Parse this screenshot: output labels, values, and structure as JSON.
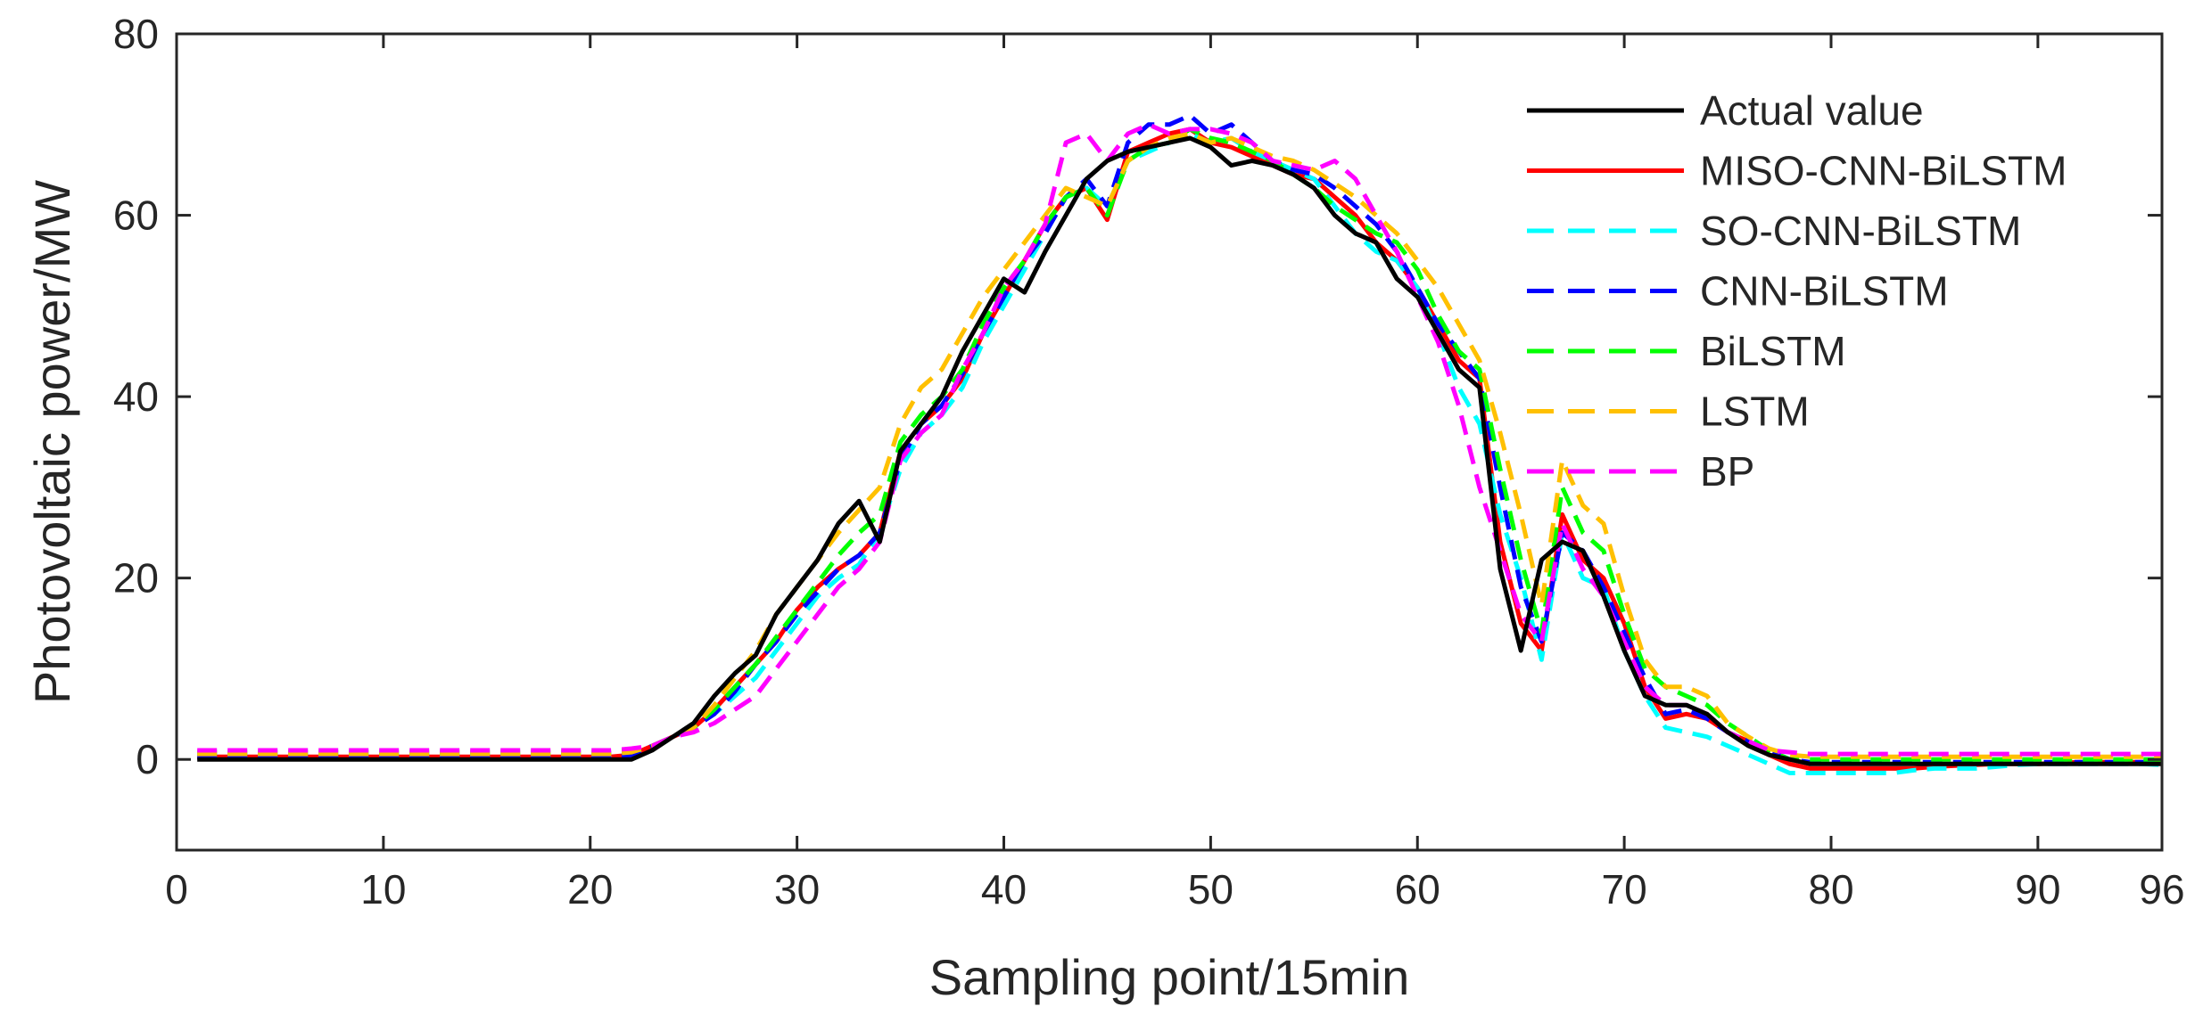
{
  "chart_data": {
    "type": "line",
    "title": "",
    "xlabel": "Sampling point/15min",
    "ylabel": "Photovoltaic power/MW",
    "xlim": [
      0,
      96
    ],
    "ylim": [
      -10,
      80
    ],
    "xticks": [
      0,
      10,
      20,
      30,
      40,
      50,
      60,
      70,
      80,
      90,
      96
    ],
    "yticks": [
      0,
      20,
      40,
      60,
      80
    ],
    "grid": false,
    "legend_position": "top-right",
    "x": [
      1,
      2,
      3,
      4,
      5,
      6,
      7,
      8,
      9,
      10,
      11,
      12,
      13,
      14,
      15,
      16,
      17,
      18,
      19,
      20,
      21,
      22,
      23,
      24,
      25,
      26,
      27,
      28,
      29,
      30,
      31,
      32,
      33,
      34,
      35,
      36,
      37,
      38,
      39,
      40,
      41,
      42,
      43,
      44,
      45,
      46,
      47,
      48,
      49,
      50,
      51,
      52,
      53,
      54,
      55,
      56,
      57,
      58,
      59,
      60,
      61,
      62,
      63,
      64,
      65,
      66,
      67,
      68,
      69,
      70,
      71,
      72,
      73,
      74,
      75,
      76,
      77,
      78,
      79,
      80,
      81,
      82,
      83,
      84,
      85,
      86,
      87,
      88,
      89,
      90,
      91,
      92,
      93,
      94,
      95,
      96
    ],
    "series": [
      {
        "name": "Actual value",
        "color": "#000000",
        "dash": "solid",
        "values": [
          0,
          0,
          0,
          0,
          0,
          0,
          0,
          0,
          0,
          0,
          0,
          0,
          0,
          0,
          0,
          0,
          0,
          0,
          0,
          0,
          0,
          0,
          1,
          2.5,
          4,
          7,
          9.5,
          11.5,
          16,
          19,
          22,
          26,
          28.5,
          24,
          34,
          37,
          40,
          45,
          49,
          53,
          51.5,
          56,
          60,
          64,
          66,
          67,
          67.5,
          68,
          68.5,
          67.5,
          65.5,
          66,
          65.5,
          64.5,
          63,
          60,
          58,
          57,
          53,
          51,
          47,
          43,
          41,
          21,
          12,
          22,
          24,
          23,
          18,
          12,
          7,
          6,
          6,
          5,
          3,
          1.5,
          0.5,
          0,
          -0.5,
          -0.5,
          -0.5,
          -0.5,
          -0.5,
          -0.5,
          -0.5,
          -0.5,
          -0.5,
          -0.5,
          -0.5,
          -0.5,
          -0.5,
          -0.5,
          -0.5,
          -0.5,
          -0.5,
          -0.5
        ]
      },
      {
        "name": "MISO-CNN-BiLSTM",
        "color": "#ff0000",
        "dash": "solid",
        "values": [
          0.3,
          0.3,
          0.3,
          0.3,
          0.3,
          0.3,
          0.3,
          0.3,
          0.3,
          0.3,
          0.3,
          0.3,
          0.3,
          0.3,
          0.3,
          0.3,
          0.3,
          0.3,
          0.3,
          0.3,
          0.3,
          0.5,
          1.5,
          2.5,
          3.5,
          5.5,
          8,
          10.5,
          13,
          16.5,
          19,
          21,
          22.5,
          25,
          34,
          37,
          39,
          42,
          47,
          51,
          55,
          59,
          62,
          63,
          59.5,
          67,
          68,
          69,
          69.5,
          68,
          67.5,
          66.5,
          65.5,
          64.5,
          64,
          62,
          60,
          57,
          55,
          52,
          48,
          44,
          42,
          24,
          15,
          12,
          27,
          22,
          20,
          15,
          8,
          4.5,
          5,
          4.5,
          3,
          2,
          0.5,
          -0.5,
          -1,
          -1,
          -1,
          -1,
          -1,
          -1,
          -0.8,
          -0.7,
          -0.6,
          -0.5,
          -0.5,
          -0.5,
          -0.4,
          -0.3,
          -0.3,
          -0.3,
          -0.3,
          -0.3
        ]
      },
      {
        "name": "SO-CNN-BiLSTM",
        "color": "#00ffff",
        "dash": "dashed",
        "values": [
          0.5,
          0.5,
          0.5,
          0.5,
          0.5,
          0.5,
          0.5,
          0.5,
          0.5,
          0.5,
          0.5,
          0.5,
          0.5,
          0.5,
          0.5,
          0.5,
          0.5,
          0.5,
          0.5,
          0.5,
          0.5,
          0.7,
          1.5,
          2.5,
          3.5,
          5,
          7,
          9,
          12,
          15,
          18,
          20,
          21.5,
          25,
          32,
          36,
          38,
          41,
          46,
          50,
          54,
          58,
          62,
          63,
          61,
          66,
          67,
          68,
          69,
          68,
          68.5,
          67,
          66,
          65,
          64,
          61,
          58,
          56,
          55,
          52,
          47,
          41,
          37,
          27,
          20,
          11,
          25,
          20,
          19,
          12,
          7,
          3.5,
          3,
          2.5,
          1.5,
          0.5,
          -0.5,
          -1.5,
          -1.5,
          -1.5,
          -1.5,
          -1.5,
          -1.5,
          -1.2,
          -1,
          -1,
          -1,
          -0.8,
          -0.6,
          -0.5,
          -0.5,
          -0.5,
          -0.5,
          -0.5,
          -0.5,
          -0.6
        ]
      },
      {
        "name": "CNN-BiLSTM",
        "color": "#0000ff",
        "dash": "dashed",
        "values": [
          0.2,
          0.2,
          0.2,
          0.2,
          0.2,
          0.2,
          0.2,
          0.2,
          0.2,
          0.2,
          0.2,
          0.2,
          0.2,
          0.2,
          0.2,
          0.2,
          0.2,
          0.2,
          0.2,
          0.2,
          0.2,
          0.5,
          1.5,
          2.5,
          3.5,
          5,
          7.5,
          10.5,
          13,
          16,
          18.5,
          21,
          22.5,
          25,
          33,
          37,
          39,
          42.5,
          47,
          51,
          55,
          58,
          62,
          64,
          61,
          68,
          70,
          70,
          71,
          69,
          70,
          68,
          66,
          65,
          64.5,
          63,
          61,
          59,
          56,
          52,
          48,
          45,
          42,
          30,
          19,
          13,
          25,
          23,
          19,
          14,
          9,
          5,
          5.5,
          4.5,
          3,
          2,
          1,
          0,
          -0.3,
          -0.3,
          -0.3,
          -0.3,
          -0.3,
          -0.3,
          -0.3,
          -0.3,
          -0.3,
          -0.3,
          -0.3,
          -0.3,
          -0.3,
          -0.3,
          -0.3,
          -0.3,
          -0.3,
          -0.3
        ]
      },
      {
        "name": "BiLSTM",
        "color": "#00ff00",
        "dash": "dashed",
        "values": [
          0.8,
          0.8,
          0.8,
          0.8,
          0.8,
          0.8,
          0.8,
          0.8,
          0.8,
          0.8,
          0.8,
          0.8,
          0.8,
          0.8,
          0.8,
          0.8,
          0.8,
          0.8,
          0.8,
          0.8,
          0.8,
          1,
          1.5,
          2.5,
          3.5,
          5.5,
          8,
          10.5,
          13.5,
          16.5,
          19.5,
          22.5,
          25,
          27,
          35,
          38,
          40,
          43,
          48,
          52,
          55,
          59,
          62,
          63,
          60,
          66,
          67.5,
          68,
          69.5,
          68.5,
          68,
          67,
          66,
          64.5,
          63,
          61,
          59.5,
          58,
          57,
          54,
          49,
          45,
          43,
          32,
          22,
          14,
          30,
          25,
          23,
          16,
          10,
          8,
          7,
          6,
          4,
          2.5,
          1,
          0,
          0,
          0,
          0,
          0,
          0,
          0,
          0,
          0,
          0,
          0,
          0,
          0,
          0,
          0,
          0,
          0,
          0,
          0
        ]
      },
      {
        "name": "LSTM",
        "color": "#ffc000",
        "dash": "dashed",
        "values": [
          0.6,
          0.6,
          0.6,
          0.6,
          0.6,
          0.6,
          0.6,
          0.6,
          0.6,
          0.6,
          0.6,
          0.6,
          0.6,
          0.6,
          0.6,
          0.6,
          0.6,
          0.6,
          0.6,
          0.6,
          0.6,
          0.8,
          1.5,
          2.5,
          3.5,
          6,
          9,
          12,
          16,
          19,
          22,
          25,
          27.5,
          30,
          37,
          41,
          43,
          47,
          51,
          54,
          57,
          60,
          63,
          62,
          61,
          66,
          67.5,
          68.5,
          69,
          68,
          68.5,
          67.5,
          66.5,
          66,
          65,
          63.5,
          62,
          60,
          58,
          55,
          52,
          48,
          44,
          36,
          27,
          17,
          33,
          28,
          26,
          18,
          11,
          8,
          8,
          7,
          4,
          2.5,
          1.2,
          0.5,
          0.3,
          0.3,
          0.3,
          0.3,
          0.3,
          0.3,
          0.3,
          0.3,
          0.3,
          0.3,
          0.3,
          0.3,
          0.3,
          0.3,
          0.3,
          0.3,
          0.3,
          0.3
        ]
      },
      {
        "name": "BP",
        "color": "#ff00ff",
        "dash": "dashed",
        "values": [
          1,
          1,
          1,
          1,
          1,
          1,
          1,
          1,
          1,
          1,
          1,
          1,
          1,
          1,
          1,
          1,
          1,
          1,
          1,
          1,
          1,
          1.2,
          1.5,
          2.5,
          3,
          4,
          5.5,
          7,
          10,
          13,
          16,
          19,
          21,
          24,
          33,
          36,
          38,
          43,
          47,
          52,
          55,
          59,
          68,
          69,
          66,
          69,
          70,
          69,
          69.5,
          69.5,
          69,
          68,
          66,
          65.5,
          65,
          66,
          64,
          60,
          56,
          51,
          46,
          39,
          30,
          23,
          16,
          13,
          26,
          21,
          18,
          13,
          8,
          6,
          6,
          5,
          3,
          2,
          1,
          0.8,
          0.6,
          0.6,
          0.6,
          0.6,
          0.6,
          0.6,
          0.6,
          0.6,
          0.6,
          0.6,
          0.6,
          0.6,
          0.6,
          0.6,
          0.6,
          0.6,
          0.6,
          0.6
        ]
      }
    ]
  }
}
